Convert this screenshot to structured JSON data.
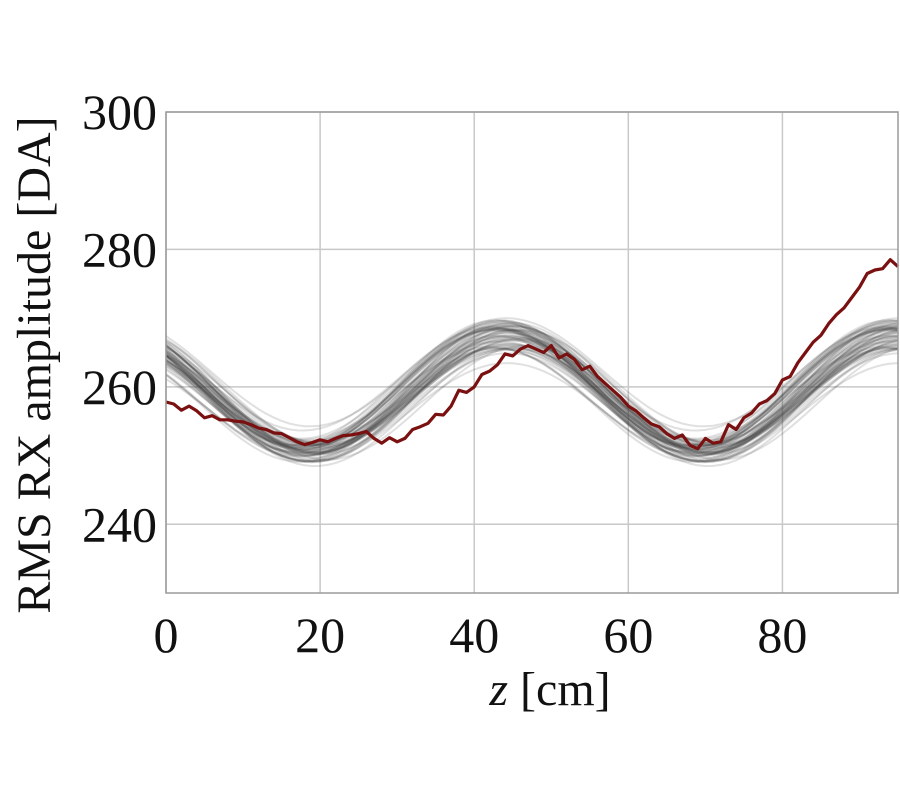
{
  "chart_data": {
    "type": "line",
    "title": "",
    "xlabel_var": "z",
    "xlabel_unit": "[cm]",
    "ylabel": "RMS RX amplitude [DA]",
    "xlim": [
      0,
      95
    ],
    "ylim": [
      230,
      300
    ],
    "x_ticks": [
      0,
      20,
      40,
      60,
      80
    ],
    "y_ticks": [
      240,
      260,
      280,
      300
    ],
    "grid": true,
    "legend": "none",
    "colors": {
      "measured": "#7a1010",
      "ensemble": "#3c3c3c",
      "grid": "#c8c8c8",
      "frame": "#9a9a9a"
    },
    "ensemble_model": {
      "description_free": true,
      "count": 60,
      "mean_offset": 259,
      "amplitude": 8.5,
      "period": 51,
      "phase_x_at_max": 44,
      "offset_spread": 1.6,
      "amplitude_spread": 1.8,
      "phase_spread": 1.4,
      "x_max": 95,
      "step": 1
    },
    "series": [
      {
        "x": [
          0,
          1,
          2,
          3,
          4,
          5,
          6,
          7,
          8,
          9,
          10,
          11,
          12,
          13,
          14,
          15,
          16,
          17,
          18,
          19,
          20,
          21,
          22,
          23,
          24,
          25,
          26,
          27,
          28,
          29,
          30,
          31,
          32,
          33,
          34,
          35,
          36,
          37,
          38,
          39,
          40,
          41,
          42,
          43,
          44,
          45,
          46,
          47,
          48,
          49,
          50,
          51,
          52,
          53,
          54,
          55,
          56,
          57,
          58,
          59,
          60,
          61,
          62,
          63,
          64,
          65,
          66,
          67,
          68,
          69,
          70,
          71,
          72,
          73,
          74,
          75,
          76,
          77,
          78,
          79,
          80,
          81,
          82,
          83,
          84,
          85,
          86,
          87,
          88,
          89,
          90,
          91,
          92,
          93,
          94,
          95
        ],
        "values": [
          257.8,
          257.5,
          256.6,
          257.2,
          256.5,
          255.5,
          255.8,
          255.2,
          255.2,
          255.0,
          254.9,
          254.5,
          254.0,
          253.8,
          253.3,
          253.2,
          252.6,
          252.0,
          251.6,
          251.9,
          252.3,
          252.0,
          252.5,
          252.9,
          253.0,
          253.2,
          253.5,
          252.5,
          251.8,
          252.6,
          252.0,
          252.5,
          253.8,
          254.2,
          254.7,
          256.0,
          255.9,
          257.2,
          259.5,
          259.2,
          260.0,
          261.8,
          262.3,
          263.2,
          264.8,
          264.5,
          265.5,
          266.0,
          265.5,
          265.0,
          266.0,
          264.2,
          264.8,
          264.0,
          262.5,
          263.0,
          261.5,
          260.5,
          259.5,
          258.5,
          257.2,
          256.5,
          255.5,
          254.6,
          254.2,
          253.2,
          252.5,
          253.0,
          251.5,
          251.0,
          252.5,
          251.8,
          252.0,
          254.5,
          253.8,
          255.5,
          256.2,
          257.5,
          258.0,
          259.0,
          261.0,
          261.5,
          263.5,
          265.0,
          266.5,
          267.5,
          269.2,
          270.5,
          271.5,
          273.0,
          274.5,
          276.5,
          277.0,
          277.2,
          278.5,
          277.5
        ]
      }
    ]
  }
}
